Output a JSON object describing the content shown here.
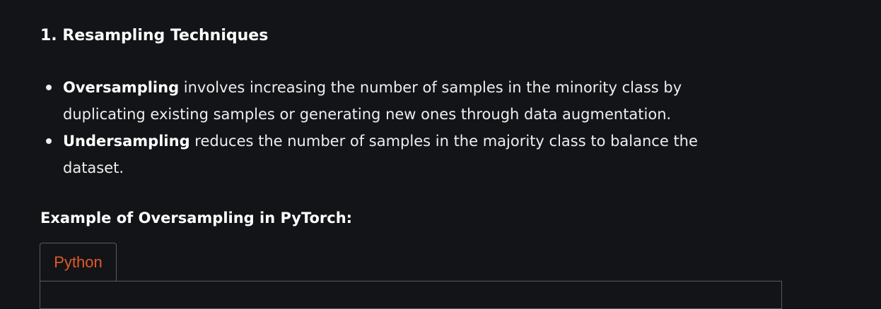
{
  "section": {
    "title": "1. Resampling Techniques"
  },
  "bullets": [
    {
      "term": "Oversampling",
      "text": " involves increasing the number of samples in the minority class by duplicating existing samples or generating new ones through data augmentation."
    },
    {
      "term": "Undersampling",
      "text": " reduces the number of samples in the majority class to balance the dataset."
    }
  ],
  "example": {
    "title": "Example of Oversampling in PyTorch:"
  },
  "code": {
    "tab_label": "Python"
  },
  "colors": {
    "background": "#131417",
    "tab_text": "#e05a2b",
    "border": "#5a5b5f"
  }
}
